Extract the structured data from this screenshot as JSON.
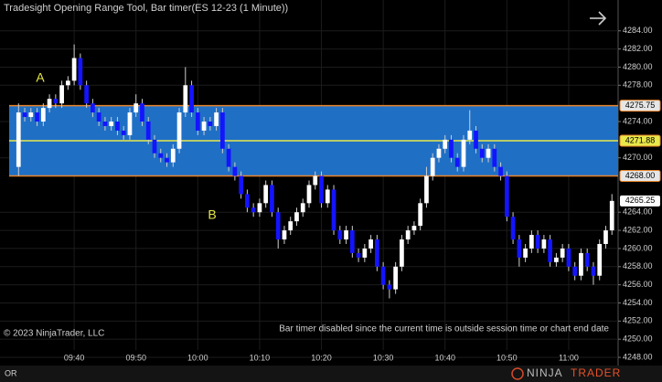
{
  "chart_data": {
    "type": "candlestick",
    "title": "Tradesight Opening Range Tool, Bar timer(ES 12-23 (1 Minute))",
    "x": [
      "09:31",
      "09:32",
      "09:33",
      "09:34",
      "09:35",
      "09:36",
      "09:37",
      "09:38",
      "09:39",
      "09:40",
      "09:41",
      "09:42",
      "09:43",
      "09:44",
      "09:45",
      "09:46",
      "09:47",
      "09:48",
      "09:49",
      "09:50",
      "09:51",
      "09:52",
      "09:53",
      "09:54",
      "09:55",
      "09:56",
      "09:57",
      "09:58",
      "09:59",
      "10:00",
      "10:01",
      "10:02",
      "10:03",
      "10:04",
      "10:05",
      "10:06",
      "10:07",
      "10:08",
      "10:09",
      "10:10",
      "10:11",
      "10:12",
      "10:13",
      "10:14",
      "10:15",
      "10:16",
      "10:17",
      "10:18",
      "10:19",
      "10:20",
      "10:21",
      "10:22",
      "10:23",
      "10:24",
      "10:25",
      "10:26",
      "10:27",
      "10:28",
      "10:29",
      "10:30",
      "10:31",
      "10:32",
      "10:33",
      "10:34",
      "10:35",
      "10:36",
      "10:37",
      "10:38",
      "10:39",
      "10:40",
      "10:41",
      "10:42",
      "10:43",
      "10:44",
      "10:45",
      "10:46",
      "10:47",
      "10:48",
      "10:49",
      "10:50",
      "10:51",
      "10:52",
      "10:53",
      "10:54",
      "10:55",
      "10:56",
      "10:57",
      "10:58",
      "10:59",
      "11:00",
      "11:01",
      "11:02",
      "11:03",
      "11:04",
      "11:05",
      "11:06",
      "11:07"
    ],
    "open": [
      4269,
      4275,
      4274.5,
      4275,
      4274,
      4275.5,
      4276.5,
      4276,
      4278,
      4278.5,
      4281,
      4278,
      4276,
      4275,
      4274,
      4273.5,
      4274,
      4273,
      4272.5,
      4275,
      4276,
      4274,
      4272,
      4270.5,
      4270,
      4269.5,
      4271,
      4275,
      4278,
      4275,
      4273,
      4274,
      4273.5,
      4275,
      4271,
      4269,
      4268,
      4266,
      4264.5,
      4264,
      4265,
      4267,
      4264,
      4261,
      4262,
      4263,
      4264,
      4265,
      4267,
      4268,
      4265,
      4266.5,
      4262,
      4261,
      4262,
      4259.5,
      4259,
      4260,
      4261,
      4258,
      4256,
      4255.5,
      4258,
      4261,
      4262,
      4262.5,
      4265,
      4268,
      4270,
      4271,
      4272,
      4270,
      4269,
      4272,
      4273,
      4271,
      4270,
      4271,
      4269,
      4268,
      4263.5,
      4261,
      4259,
      4260,
      4261.5,
      4260,
      4261,
      4258.5,
      4259,
      4260,
      4258,
      4257,
      4259.5,
      4258,
      4257,
      4260.5,
      4262
    ],
    "high": [
      4276,
      4275.5,
      4275.5,
      4275.5,
      4276,
      4277,
      4277,
      4278.5,
      4279,
      4282.5,
      4281.5,
      4278.5,
      4276.5,
      4275.5,
      4274.5,
      4274.5,
      4274.5,
      4273.5,
      4275.5,
      4277,
      4276.5,
      4274.5,
      4272.5,
      4271,
      4270.5,
      4271.5,
      4275.5,
      4280,
      4278.5,
      4275.5,
      4274.5,
      4274.5,
      4275.5,
      4275.5,
      4271.5,
      4269.5,
      4268.5,
      4266.5,
      4265,
      4265.5,
      4267.5,
      4267.5,
      4264.5,
      4262.5,
      4263.5,
      4264.5,
      4265.5,
      4267.5,
      4268.5,
      4268.5,
      4267,
      4267,
      4262.5,
      4262.5,
      4262.5,
      4260,
      4260.5,
      4261.5,
      4261.5,
      4258.5,
      4256.5,
      4258.5,
      4261.5,
      4262.5,
      4263,
      4265.5,
      4269,
      4270.5,
      4271.5,
      4272.5,
      4272.5,
      4270.5,
      4272.5,
      4275.25,
      4273.5,
      4271.5,
      4271.5,
      4271.5,
      4269.5,
      4268.5,
      4264,
      4261.5,
      4260.5,
      4262,
      4262,
      4261.5,
      4261.5,
      4259.5,
      4260.5,
      4260.5,
      4258.5,
      4260,
      4260,
      4258.5,
      4261,
      4262.5,
      4266
    ],
    "low": [
      4268,
      4274,
      4274,
      4273.5,
      4273.5,
      4275,
      4275.5,
      4275.5,
      4277.5,
      4278,
      4277.5,
      4275.5,
      4274.5,
      4273.5,
      4273,
      4273,
      4272.5,
      4272,
      4272,
      4274.5,
      4273.5,
      4271.5,
      4270,
      4269.5,
      4269,
      4269,
      4270.5,
      4274.5,
      4274.5,
      4272.5,
      4272.5,
      4273,
      4273,
      4270.5,
      4268.5,
      4267.5,
      4265.5,
      4264,
      4263.5,
      4263.5,
      4264.5,
      4263.5,
      4260,
      4260.5,
      4261.5,
      4262.5,
      4263.5,
      4264.5,
      4266.5,
      4264.5,
      4264.5,
      4261.5,
      4260.5,
      4260.5,
      4259,
      4258.5,
      4258.5,
      4259.5,
      4257.5,
      4255.5,
      4254.5,
      4255,
      4257.5,
      4260.5,
      4261.5,
      4262,
      4264.5,
      4267.5,
      4269.5,
      4270.5,
      4269.5,
      4268.5,
      4268.5,
      4271.5,
      4270.5,
      4269.5,
      4269.5,
      4268.5,
      4267.5,
      4263,
      4260.5,
      4258,
      4258.5,
      4259.5,
      4259.5,
      4259.5,
      4258,
      4258,
      4258.5,
      4257.5,
      4256.5,
      4256.5,
      4257.5,
      4256,
      4256.5,
      4260,
      4261.5
    ],
    "close": [
      4275,
      4274.5,
      4275,
      4274,
      4275.5,
      4276.5,
      4276,
      4278,
      4278.5,
      4281,
      4278,
      4276,
      4275,
      4274,
      4273.5,
      4274,
      4273,
      4272.5,
      4275,
      4276,
      4274,
      4272,
      4270.5,
      4270,
      4269.5,
      4271,
      4275,
      4278,
      4275,
      4273,
      4274,
      4273.5,
      4275,
      4271,
      4269,
      4268,
      4266,
      4264.5,
      4264,
      4265,
      4267,
      4264,
      4261,
      4262,
      4263,
      4264,
      4265,
      4267,
      4268,
      4265,
      4266.5,
      4262,
      4261,
      4262,
      4259.5,
      4259,
      4260,
      4261,
      4258,
      4256,
      4255.5,
      4258,
      4261,
      4262,
      4262.5,
      4265,
      4268,
      4270,
      4271,
      4272,
      4270,
      4269,
      4272,
      4273,
      4271,
      4270,
      4271,
      4269,
      4268,
      4263.5,
      4261,
      4259,
      4260,
      4261.5,
      4260,
      4261,
      4258.5,
      4259,
      4260,
      4258,
      4257,
      4259.5,
      4258,
      4257,
      4260.5,
      4262,
      4265.25
    ],
    "up_color": "#ffffff",
    "down_color": "#1414ff",
    "xlim": [
      "09:28",
      "11:08"
    ],
    "xticks": [
      "09:40",
      "09:50",
      "10:00",
      "10:10",
      "10:20",
      "10:30",
      "10:40",
      "10:50",
      "11:00"
    ],
    "ylim": [
      4247.6,
      4287.4
    ],
    "yticks": [
      {
        "value": 4248,
        "label": "4248.00"
      },
      {
        "value": 4250,
        "label": "4250.00"
      },
      {
        "value": 4252,
        "label": "4252.00"
      },
      {
        "value": 4254,
        "label": "4254.00"
      },
      {
        "value": 4256,
        "label": "4256.00"
      },
      {
        "value": 4258,
        "label": "4258.00"
      },
      {
        "value": 4260,
        "label": "4260.00"
      },
      {
        "value": 4262,
        "label": "4262.00"
      },
      {
        "value": 4264,
        "label": "4264.00"
      },
      {
        "value": 4270,
        "label": "4270.00"
      },
      {
        "value": 4274,
        "label": "4274.00"
      },
      {
        "value": 4278,
        "label": "4278.00"
      },
      {
        "value": 4280,
        "label": "4280.00"
      },
      {
        "value": 4282,
        "label": "4282.00"
      },
      {
        "value": 4284,
        "label": "4284.00"
      }
    ],
    "grid": true,
    "opening_range": {
      "values": [
        4275.75,
        4271.88,
        4268
      ],
      "value_labels": [
        "4275.75",
        "4271.88",
        "4268.00"
      ],
      "fill": "#1f6fc5",
      "edge_color": "#e8842a",
      "mid_color": "#e8e84a"
    },
    "last_price": {
      "value": 4265.25,
      "label": "4265.25"
    },
    "annotations": [
      "A",
      "B"
    ],
    "copyright": "© 2023 NinjaTrader, LLC",
    "message": "Bar timer disabled since the current time is outside session time or chart end date",
    "tab": "OR",
    "logo": [
      "NINJA",
      "TRADER"
    ]
  }
}
